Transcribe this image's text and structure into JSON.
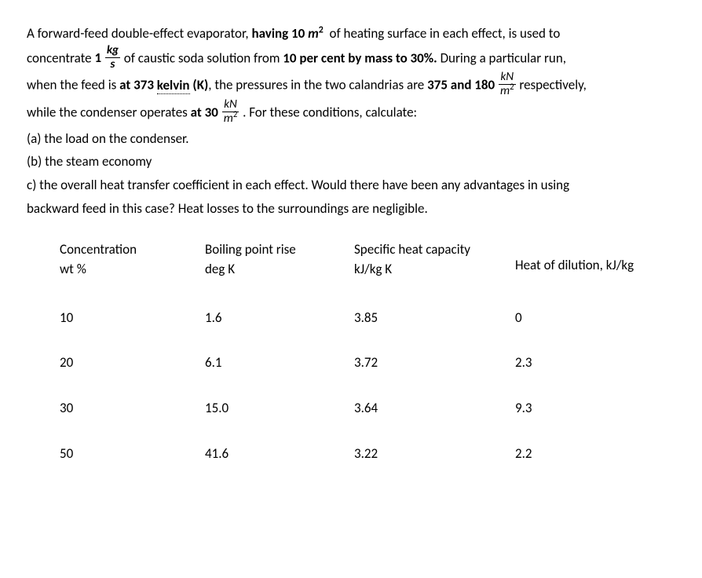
{
  "problem": {
    "line1_a": "A forward-feed double-effect evaporator, ",
    "line1_b": "having 10 ",
    "line1_c": "of heating surface in each effect, is used to",
    "line2_a": "concentrate ",
    "line2_b": "1",
    "line2_c": "of caustic soda solution from ",
    "line2_d": "10 per cent by mass to 30%.",
    "line2_e": " During a particular run,",
    "line3_a": "when the feed is ",
    "line3_b": "at 373 ",
    "line3_kelvin": "kelvin",
    "line3_c": " (K)",
    "line3_d": ", the pressures in the two calandrias are ",
    "line3_e": "375 and 180",
    "line3_f": "respectively,",
    "line4_a": "while the condenser operates ",
    "line4_b": "at 30",
    "line4_c": ". For these conditions, calculate:",
    "item_a": "(a) the load on the condenser.",
    "item_b": "(b) the steam economy",
    "item_c1": "c) the overall heat transfer coefficient in each effect. Would there have been any advantages in using",
    "item_c2": "backward feed in this case? Heat losses to the surroundings are negligible.",
    "unit_kg": "kg",
    "unit_s": "s",
    "unit_kN": "kN",
    "unit_m2": "m",
    "unit_m_var": "m"
  },
  "table": {
    "headers": {
      "col1_top": "Concentration",
      "col1_bot": "wt %",
      "col2_top": "Boiling point rise",
      "col2_bot": "deg K",
      "col3_top": "Specific heat capacity",
      "col3_bot": "kJ/kg K",
      "col4": "Heat of dilution, kJ/kg"
    },
    "rows": [
      {
        "conc": "10",
        "bpr": "1.6",
        "shc": "3.85",
        "hod": "0"
      },
      {
        "conc": "20",
        "bpr": "6.1",
        "shc": "3.72",
        "hod": "2.3"
      },
      {
        "conc": "30",
        "bpr": "15.0",
        "shc": "3.64",
        "hod": "9.3"
      },
      {
        "conc": "50",
        "bpr": "41.6",
        "shc": "3.22",
        "hod": "2.2"
      }
    ]
  }
}
